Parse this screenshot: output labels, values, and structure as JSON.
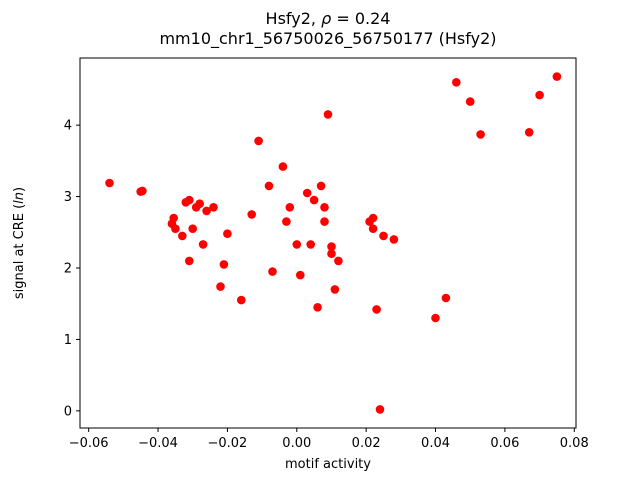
{
  "figure": {
    "background": "#ffffff"
  },
  "chart_data": {
    "type": "scatter",
    "title_line1": {
      "prefix": "Hsfy2, ",
      "rho": "ρ",
      "suffix": " = 0.24"
    },
    "title_line2": "mm10_chr1_56750026_56750177 (Hsfy2)",
    "xlabel": "motif activity",
    "ylabel": {
      "prefix": "signal at CRE (",
      "italic": "ln",
      "suffix": ")"
    },
    "marker_color": "#ff0000",
    "grid": false,
    "legend": "none",
    "xlim": [
      -0.0625,
      0.0805
    ],
    "ylim": [
      -0.24,
      4.94
    ],
    "xticks": [
      -0.06,
      -0.04,
      -0.02,
      0.0,
      0.02,
      0.04,
      0.06,
      0.08
    ],
    "xtick_labels": [
      "−0.06",
      "−0.04",
      "−0.02",
      "0.00",
      "0.02",
      "0.04",
      "0.06",
      "0.08"
    ],
    "yticks": [
      0,
      1,
      2,
      3,
      4
    ],
    "ytick_labels": [
      "0",
      "1",
      "2",
      "3",
      "4"
    ],
    "x": [
      -0.054,
      -0.045,
      -0.0445,
      -0.036,
      -0.0355,
      -0.035,
      -0.033,
      -0.032,
      -0.031,
      -0.031,
      -0.03,
      -0.029,
      -0.028,
      -0.027,
      -0.026,
      -0.024,
      -0.022,
      -0.021,
      -0.02,
      -0.016,
      -0.013,
      -0.011,
      -0.008,
      -0.007,
      -0.004,
      -0.003,
      -0.002,
      0.0,
      0.001,
      0.003,
      0.004,
      0.005,
      0.006,
      0.007,
      0.008,
      0.008,
      0.009,
      0.01,
      0.01,
      0.011,
      0.012,
      0.021,
      0.022,
      0.022,
      0.023,
      0.024,
      0.025,
      0.028,
      0.04,
      0.043,
      0.046,
      0.05,
      0.053,
      0.067,
      0.07,
      0.075
    ],
    "y": [
      3.19,
      3.07,
      3.08,
      2.62,
      2.7,
      2.55,
      2.45,
      2.92,
      2.95,
      2.1,
      2.55,
      2.85,
      2.9,
      2.33,
      2.8,
      2.85,
      1.74,
      2.05,
      2.48,
      1.55,
      2.75,
      3.78,
      3.15,
      1.95,
      3.42,
      2.65,
      2.85,
      2.33,
      1.9,
      3.05,
      2.33,
      2.95,
      1.45,
      3.15,
      2.85,
      2.65,
      4.15,
      2.3,
      2.2,
      1.7,
      2.1,
      2.65,
      2.7,
      2.55,
      1.42,
      0.02,
      2.45,
      2.4,
      1.3,
      1.58,
      4.6,
      4.33,
      3.87,
      3.9,
      4.42,
      4.68
    ]
  }
}
